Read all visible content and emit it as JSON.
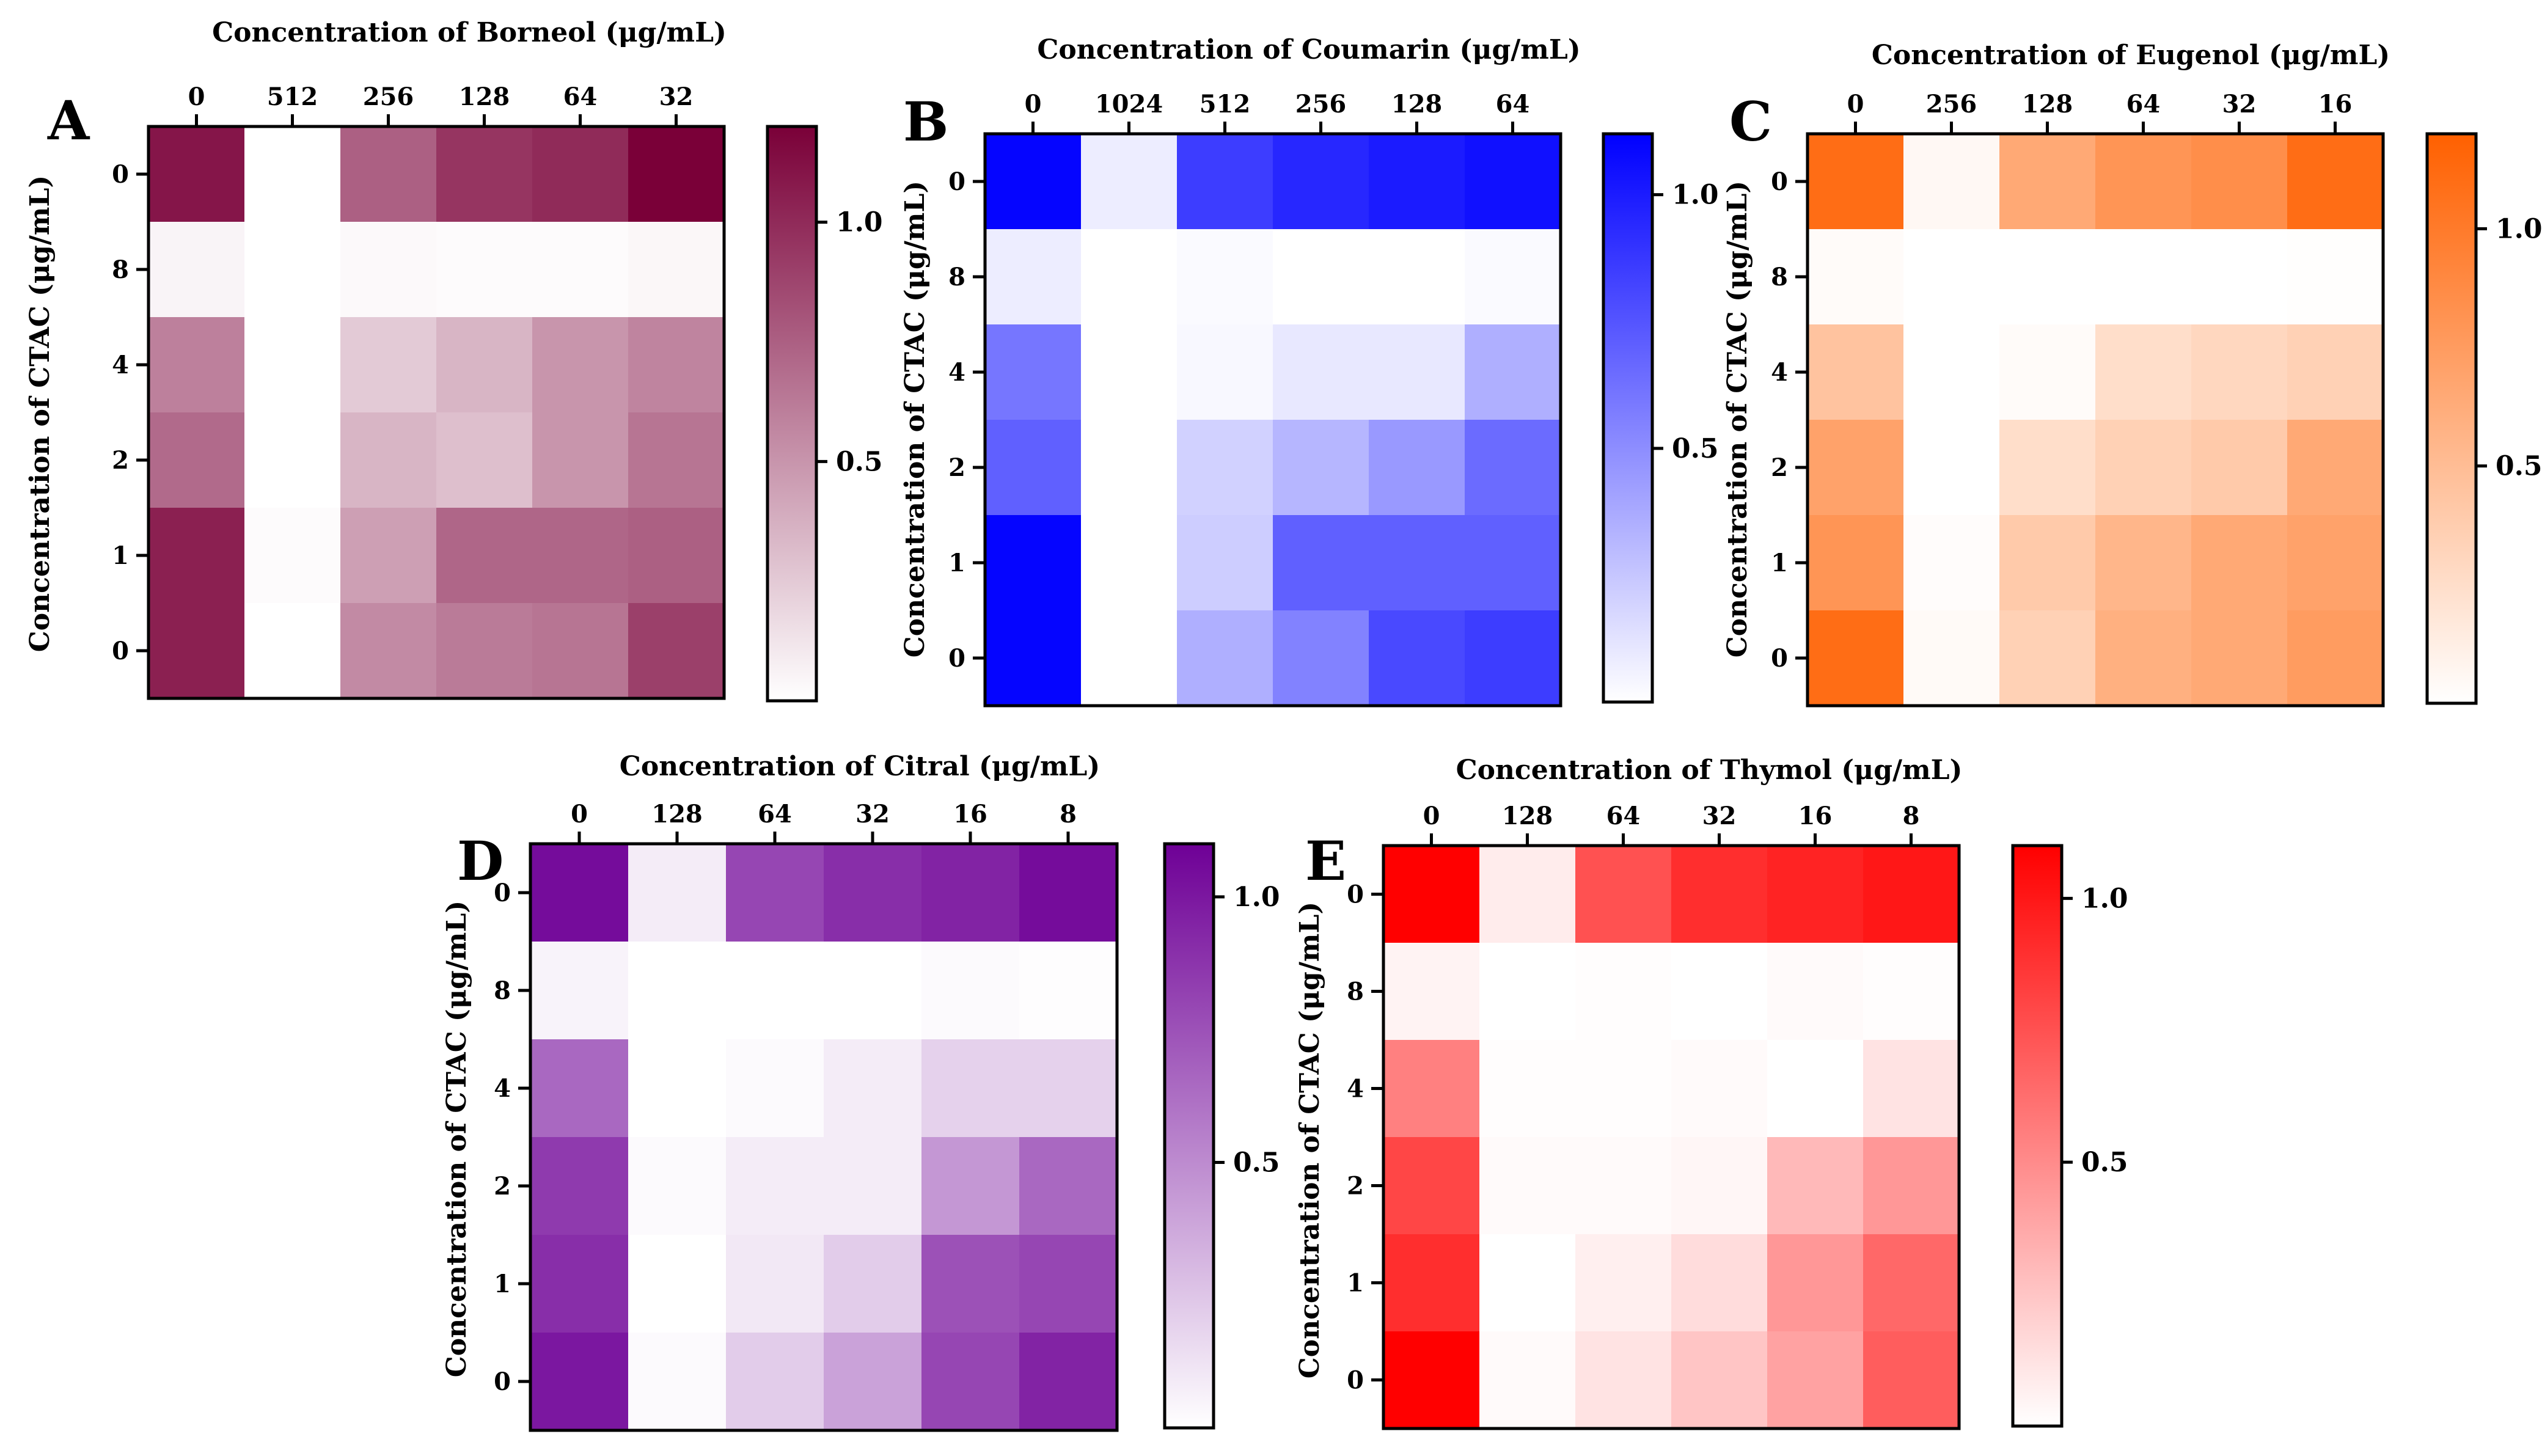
{
  "chart_data": [
    {
      "type": "heatmap",
      "panel_letter": "A",
      "title": "Concentration of Borneol (μg/mL)",
      "xlabel": "Concentration of Borneol (μg/mL)",
      "ylabel": "Concentration of CTAC (μg/mL)",
      "x_categories": [
        "0",
        "512",
        "256",
        "128",
        "64",
        "32"
      ],
      "y_categories": [
        "0",
        "8",
        "4",
        "2",
        "1",
        "0"
      ],
      "values": [
        [
          1.1,
          0.0,
          0.75,
          0.95,
          1.0,
          1.2
        ],
        [
          0.05,
          0.0,
          0.03,
          0.02,
          0.02,
          0.04
        ],
        [
          0.6,
          0.0,
          0.25,
          0.35,
          0.5,
          0.58
        ],
        [
          0.7,
          0.0,
          0.35,
          0.3,
          0.5,
          0.65
        ],
        [
          1.05,
          0.02,
          0.45,
          0.72,
          0.72,
          0.75
        ],
        [
          1.05,
          0.0,
          0.55,
          0.62,
          0.65,
          0.9
        ]
      ],
      "colorbar": {
        "min": 0,
        "max": 1.2,
        "ticks": [
          "1.0",
          "0.5"
        ],
        "tick_values": [
          1.0,
          0.5
        ]
      },
      "color_high": "#7a0038",
      "color_low": "#ffffff"
    },
    {
      "type": "heatmap",
      "panel_letter": "B",
      "title": "Concentration of Coumarin (μg/mL)",
      "xlabel": "Concentration of Coumarin (μg/mL)",
      "ylabel": "Concentration of CTAC (μg/mL)",
      "x_categories": [
        "0",
        "1024",
        "512",
        "256",
        "128",
        "64"
      ],
      "y_categories": [
        "0",
        "8",
        "4",
        "2",
        "1",
        "0"
      ],
      "values": [
        [
          1.1,
          0.08,
          0.85,
          0.95,
          1.0,
          1.05
        ],
        [
          0.08,
          0.0,
          0.02,
          0.0,
          0.0,
          0.02
        ],
        [
          0.6,
          0.0,
          0.03,
          0.1,
          0.1,
          0.35
        ],
        [
          0.7,
          0.0,
          0.2,
          0.32,
          0.45,
          0.65
        ],
        [
          1.1,
          0.0,
          0.22,
          0.7,
          0.7,
          0.7
        ],
        [
          1.1,
          0.0,
          0.35,
          0.55,
          0.8,
          0.85
        ]
      ],
      "colorbar": {
        "min": 0,
        "max": 1.12,
        "ticks": [
          "1.0",
          "0.5"
        ],
        "tick_values": [
          1.0,
          0.5
        ]
      },
      "color_high": "#0000ff",
      "color_low": "#ffffff"
    },
    {
      "type": "heatmap",
      "panel_letter": "C",
      "title": "Concentration of Eugenol (μg/mL)",
      "xlabel": "Concentration of Eugenol (μg/mL)",
      "ylabel": "Concentration of CTAC (μg/mL)",
      "x_categories": [
        "0",
        "256",
        "128",
        "64",
        "32",
        "16"
      ],
      "y_categories": [
        "0",
        "8",
        "4",
        "2",
        "1",
        "0"
      ],
      "values": [
        [
          1.1,
          0.05,
          0.65,
          0.8,
          0.85,
          1.1
        ],
        [
          0.03,
          0.0,
          0.0,
          0.0,
          0.0,
          0.01
        ],
        [
          0.45,
          0.0,
          0.03,
          0.25,
          0.3,
          0.35
        ],
        [
          0.7,
          0.0,
          0.25,
          0.35,
          0.4,
          0.65
        ],
        [
          0.8,
          0.02,
          0.4,
          0.55,
          0.65,
          0.7
        ],
        [
          1.1,
          0.04,
          0.35,
          0.6,
          0.65,
          0.75
        ]
      ],
      "colorbar": {
        "min": 0,
        "max": 1.2,
        "ticks": [
          "1.0",
          "0.5"
        ],
        "tick_values": [
          1.0,
          0.5
        ]
      },
      "color_high": "#ff6000",
      "color_low": "#ffffff"
    },
    {
      "type": "heatmap",
      "panel_letter": "D",
      "title": "Concentration of Citral (μg/mL)",
      "xlabel": "Concentration of Citral (μg/mL)",
      "ylabel": "Concentration of CTAC (μg/mL)",
      "x_categories": [
        "0",
        "128",
        "64",
        "32",
        "16",
        "8"
      ],
      "y_categories": [
        "0",
        "8",
        "4",
        "2",
        "1",
        "0"
      ],
      "values": [
        [
          1.05,
          0.08,
          0.8,
          0.9,
          0.95,
          1.05
        ],
        [
          0.05,
          0.0,
          0.0,
          0.0,
          0.02,
          0.01
        ],
        [
          0.65,
          0.0,
          0.02,
          0.08,
          0.2,
          0.2
        ],
        [
          0.85,
          0.02,
          0.08,
          0.08,
          0.45,
          0.65
        ],
        [
          0.9,
          0.0,
          0.1,
          0.22,
          0.75,
          0.8
        ],
        [
          1.0,
          0.02,
          0.22,
          0.4,
          0.8,
          0.95
        ]
      ],
      "colorbar": {
        "min": 0,
        "max": 1.1,
        "ticks": [
          "1.0",
          "0.5"
        ],
        "tick_values": [
          1.0,
          0.5
        ]
      },
      "color_high": "#6e0096",
      "color_low": "#ffffff"
    },
    {
      "type": "heatmap",
      "panel_letter": "E",
      "title": "Concentration of Thymol (μg/mL)",
      "xlabel": "Concentration of Thymol (μg/mL)",
      "ylabel": "Concentration of CTAC (μg/mL)",
      "x_categories": [
        "0",
        "128",
        "64",
        "32",
        "16",
        "8"
      ],
      "y_categories": [
        "0",
        "8",
        "4",
        "2",
        "1",
        "0"
      ],
      "values": [
        [
          1.1,
          0.08,
          0.75,
          0.9,
          0.95,
          1.0
        ],
        [
          0.05,
          0.0,
          0.01,
          0.0,
          0.02,
          0.01
        ],
        [
          0.55,
          0.01,
          0.01,
          0.02,
          0.0,
          0.12
        ],
        [
          0.8,
          0.02,
          0.02,
          0.04,
          0.3,
          0.45
        ],
        [
          0.9,
          0.0,
          0.07,
          0.15,
          0.45,
          0.65
        ],
        [
          1.1,
          0.02,
          0.12,
          0.25,
          0.4,
          0.7
        ]
      ],
      "colorbar": {
        "min": 0,
        "max": 1.1,
        "ticks": [
          "1.0",
          "0.5"
        ],
        "tick_values": [
          1.0,
          0.5
        ]
      },
      "color_high": "#ff0000",
      "color_low": "#ffffff"
    }
  ]
}
